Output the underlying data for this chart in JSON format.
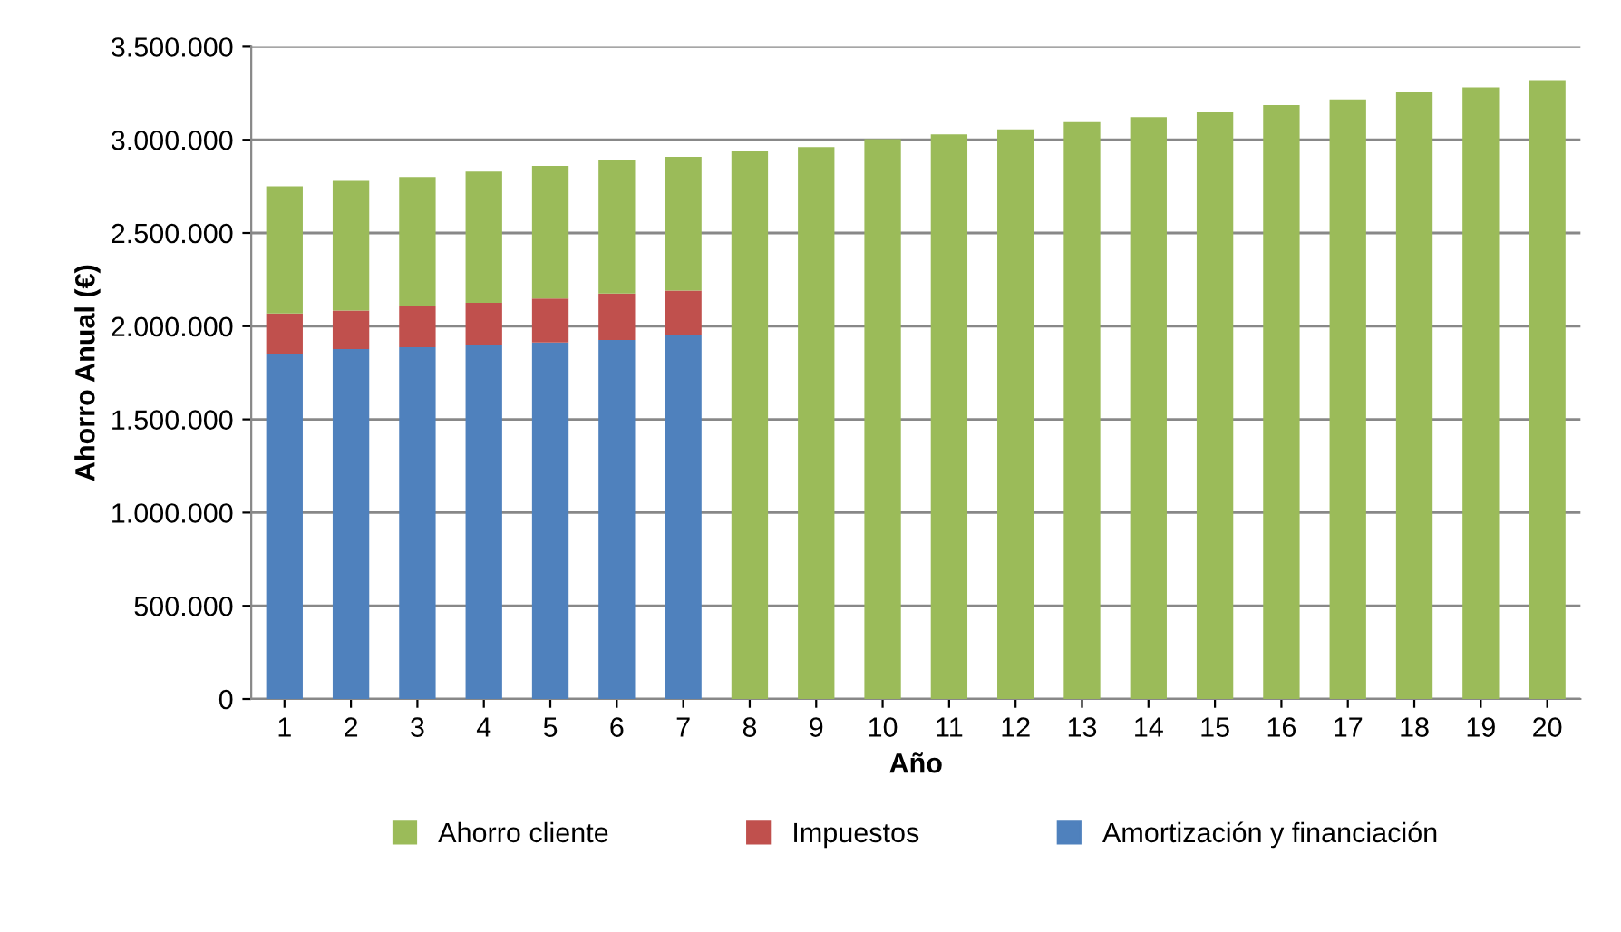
{
  "chart_data": {
    "type": "bar",
    "stacked": true,
    "xlabel": "Año",
    "ylabel": "Ahorro Anual (€)",
    "categories": [
      "1",
      "2",
      "3",
      "4",
      "5",
      "6",
      "7",
      "8",
      "9",
      "10",
      "11",
      "12",
      "13",
      "14",
      "15",
      "16",
      "17",
      "18",
      "19",
      "20"
    ],
    "series": [
      {
        "name": "Amortización y financiación",
        "color": "#4f81bd",
        "values": [
          1848000,
          1877000,
          1887000,
          1900000,
          1913000,
          1926000,
          1951000,
          null,
          null,
          null,
          null,
          null,
          null,
          null,
          null,
          null,
          null,
          null,
          null,
          null
        ]
      },
      {
        "name": "Impuestos",
        "color": "#c0504d",
        "values": [
          220000,
          207000,
          220000,
          226000,
          236000,
          249000,
          240000,
          null,
          null,
          null,
          null,
          null,
          null,
          null,
          null,
          null,
          null,
          null,
          null,
          null
        ]
      },
      {
        "name": "Ahorro cliente",
        "color": "#9bbb59",
        "values": [
          682000,
          696000,
          693000,
          704000,
          711000,
          715000,
          717000,
          2938000,
          2961000,
          3003000,
          3029000,
          3056000,
          3095000,
          3121000,
          3147000,
          3186000,
          3216000,
          3255000,
          3281000,
          3320000
        ]
      }
    ],
    "ylim": [
      0,
      3500000
    ],
    "yticks": [
      {
        "value": 0,
        "label": "0"
      },
      {
        "value": 500000,
        "label": "500.000"
      },
      {
        "value": 1000000,
        "label": "1.000.000"
      },
      {
        "value": 1500000,
        "label": "1.500.000"
      },
      {
        "value": 2000000,
        "label": "2.000.000"
      },
      {
        "value": 2500000,
        "label": "2.500.000"
      },
      {
        "value": 3000000,
        "label": "3.000.000"
      },
      {
        "value": 3500000,
        "label": "3.500.000"
      }
    ],
    "grid": "y",
    "legend": "bottom"
  }
}
